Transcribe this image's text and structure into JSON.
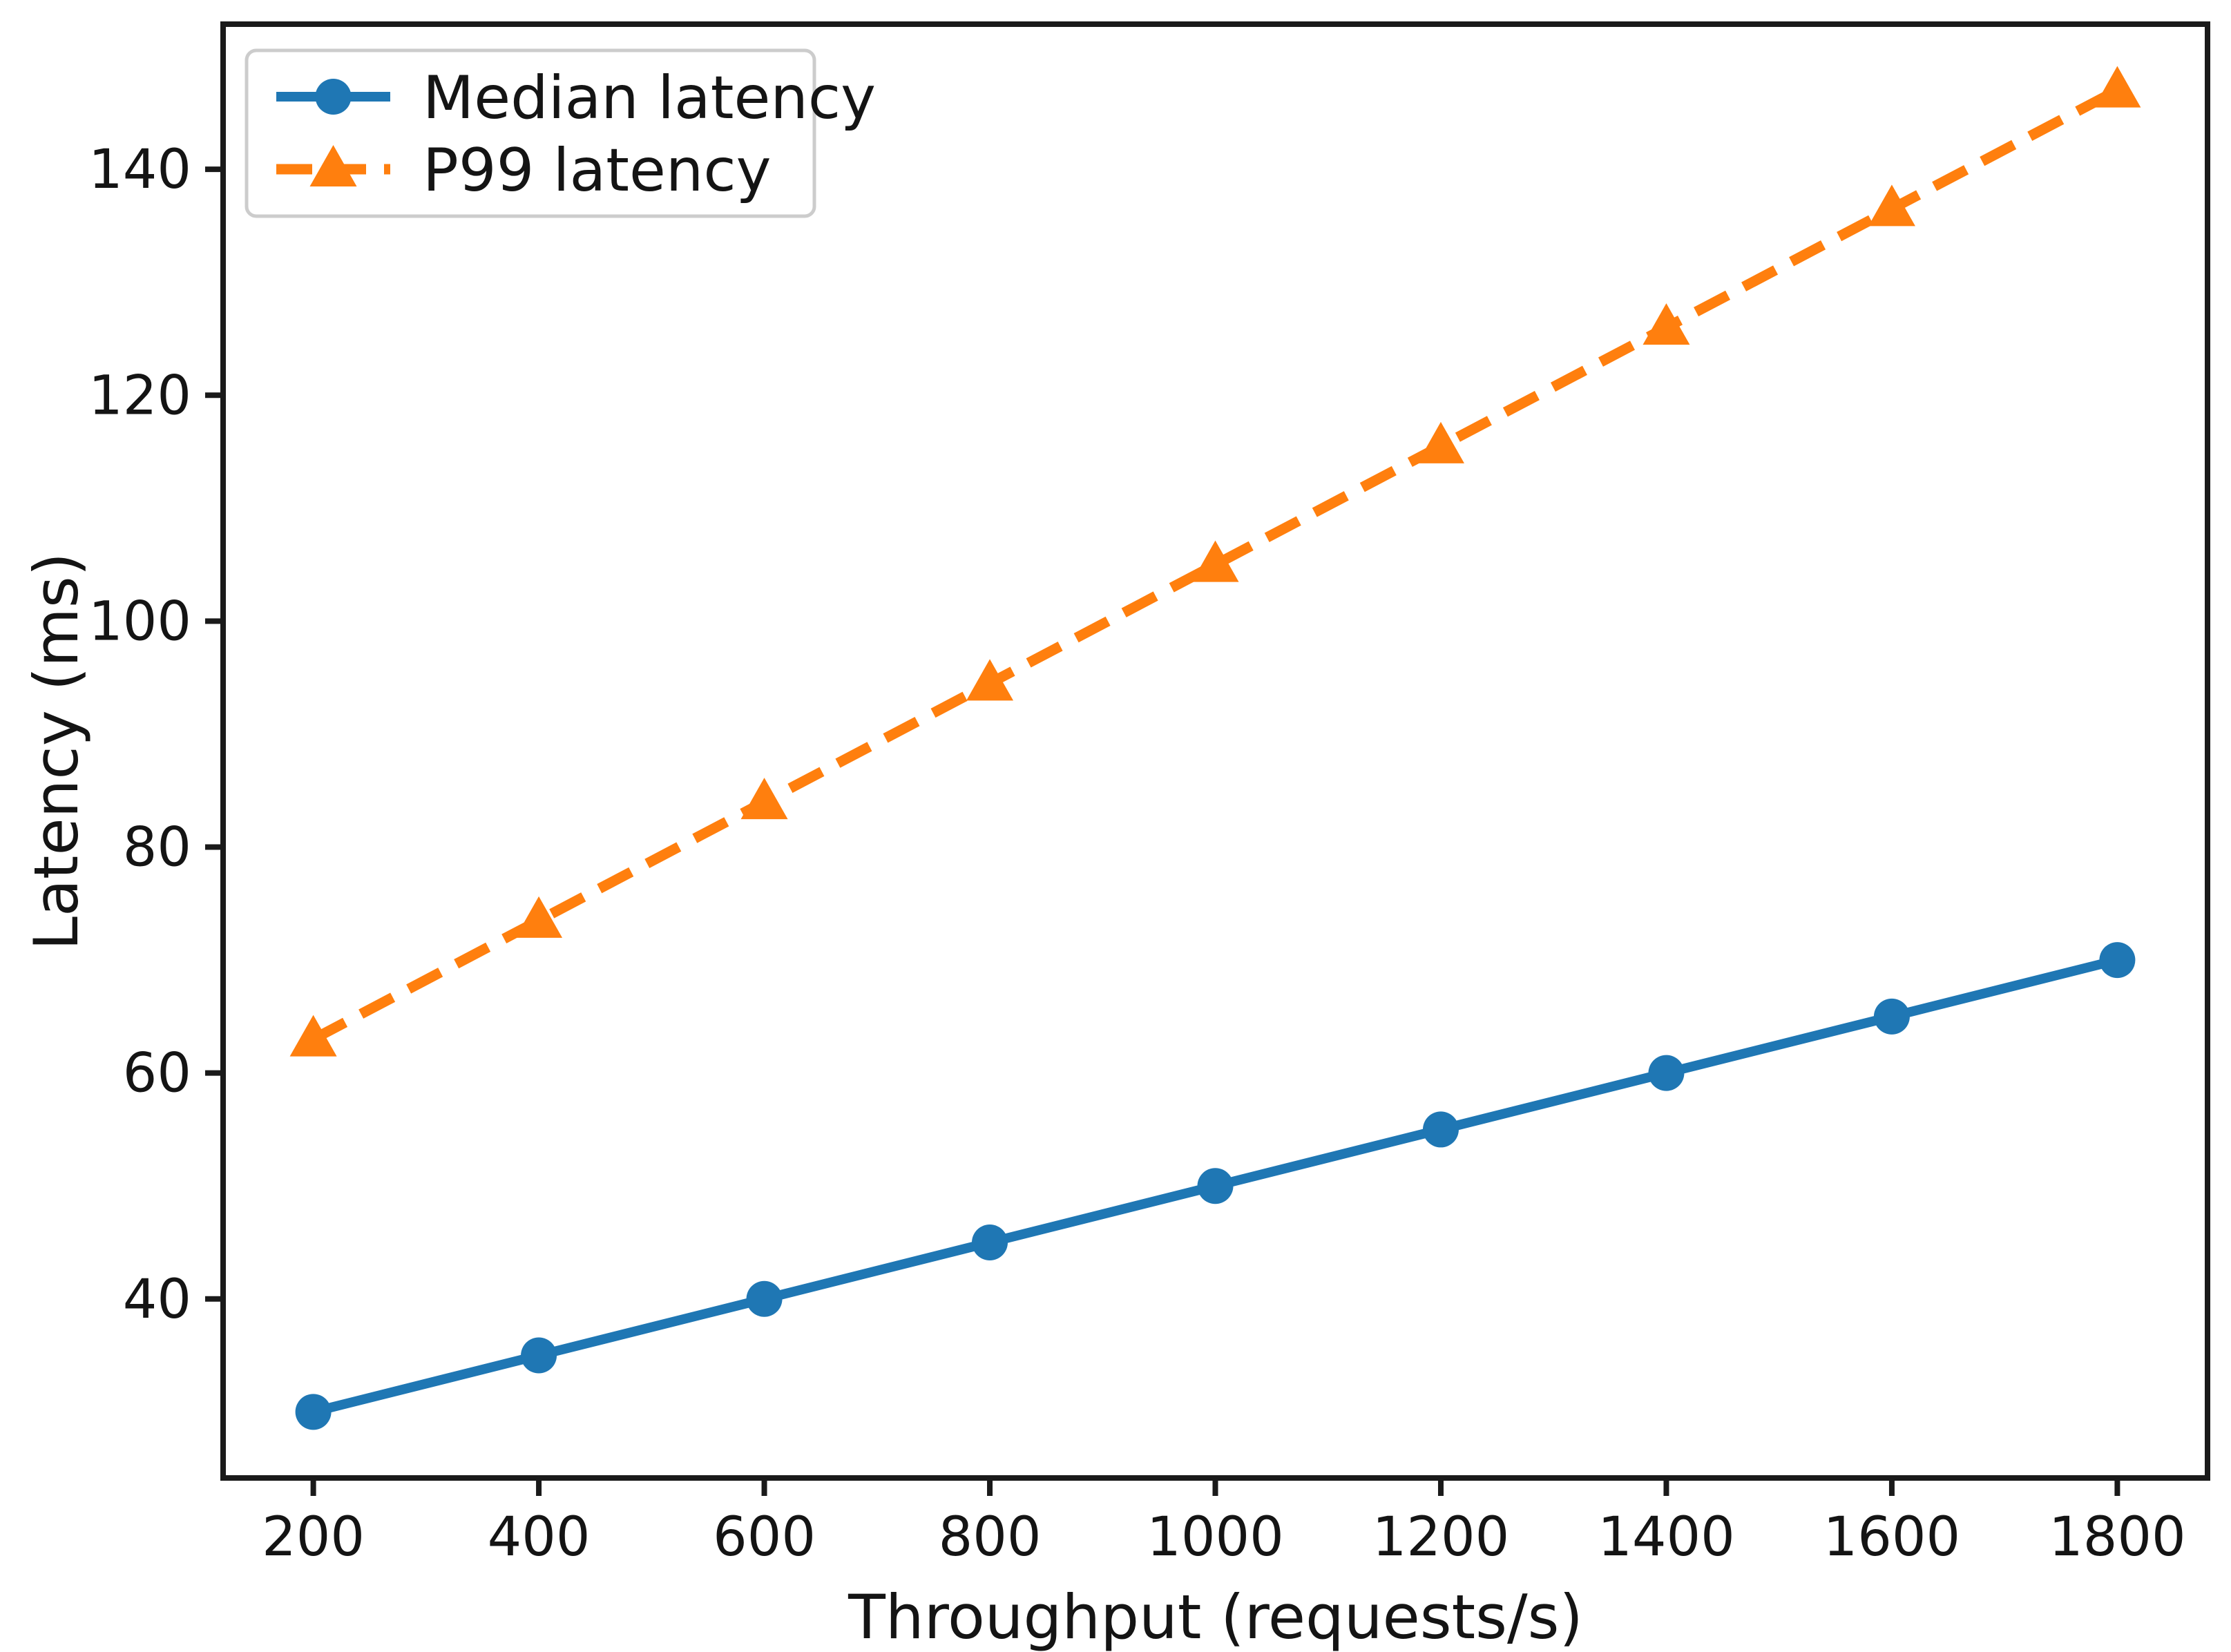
{
  "figure": {
    "background": "#ffffff",
    "text_color": "#141414",
    "axis_color": "#1a1a1a"
  },
  "chart_data": {
    "type": "line",
    "title": "",
    "xlabel": "Throughput (requests/s)",
    "ylabel": "Latency (ms)",
    "x": [
      200,
      400,
      600,
      800,
      1000,
      1200,
      1400,
      1600,
      1800
    ],
    "series": [
      {
        "name": "Median latency",
        "color": "#1f77b4",
        "linestyle": "solid",
        "marker": "circle",
        "values": [
          30,
          35,
          40,
          45,
          50,
          55,
          60,
          65,
          70
        ]
      },
      {
        "name": "P99 latency",
        "color": "#ff7f0e",
        "linestyle": "dashed",
        "marker": "triangle-up",
        "values": [
          63,
          73.5,
          84,
          94.5,
          105,
          115.5,
          126,
          136.5,
          147
        ]
      }
    ],
    "xticks": {
      "values": [
        200,
        400,
        600,
        800,
        1000,
        1200,
        1400,
        1600,
        1800
      ],
      "labels": [
        "200",
        "400",
        "600",
        "800",
        "1000",
        "1200",
        "1400",
        "1600",
        "1800"
      ]
    },
    "yticks": {
      "values": [
        40,
        60,
        80,
        100,
        120,
        140
      ],
      "labels": [
        "40",
        "60",
        "80",
        "100",
        "120",
        "140"
      ]
    },
    "xlim": [
      120,
      1880
    ],
    "ylim": [
      24.15,
      152.85
    ],
    "grid": false,
    "legend": {
      "position": "upper-left",
      "entries": [
        "Median latency",
        "P99 latency"
      ]
    }
  }
}
